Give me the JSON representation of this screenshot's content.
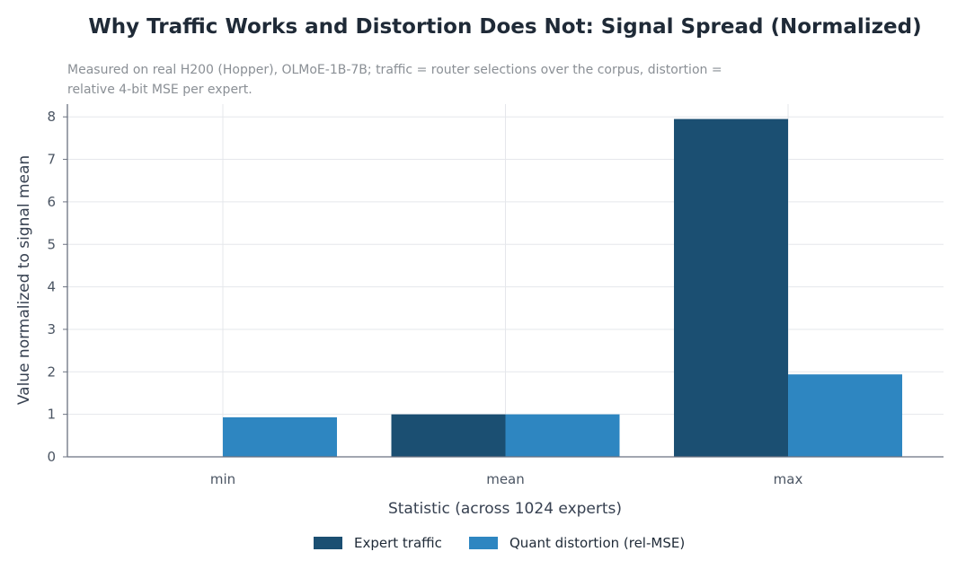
{
  "chart_data": {
    "type": "bar",
    "title": "Why Traffic Works and Distortion Does Not: Signal Spread (Normalized)",
    "subtitle_lines": [
      "Measured on real H200 (Hopper), OLMoE-1B-7B; traffic = router selections over the corpus, distortion =",
      "relative 4-bit MSE per expert."
    ],
    "xlabel": "Statistic (across 1024 experts)",
    "ylabel": "Value normalized to signal mean",
    "categories": [
      "min",
      "mean",
      "max"
    ],
    "series": [
      {
        "name": "Expert traffic",
        "values": [
          0.0,
          1.0,
          7.95
        ],
        "color": "#1b4f72"
      },
      {
        "name": "Quant distortion (rel-MSE)",
        "values": [
          0.93,
          1.0,
          1.94
        ],
        "color": "#2e86c1"
      }
    ],
    "ylim": [
      0,
      8.3
    ],
    "yticks": [
      0,
      1,
      2,
      3,
      4,
      5,
      6,
      7,
      8
    ],
    "grid": true,
    "legend_position": "bottom-center"
  }
}
